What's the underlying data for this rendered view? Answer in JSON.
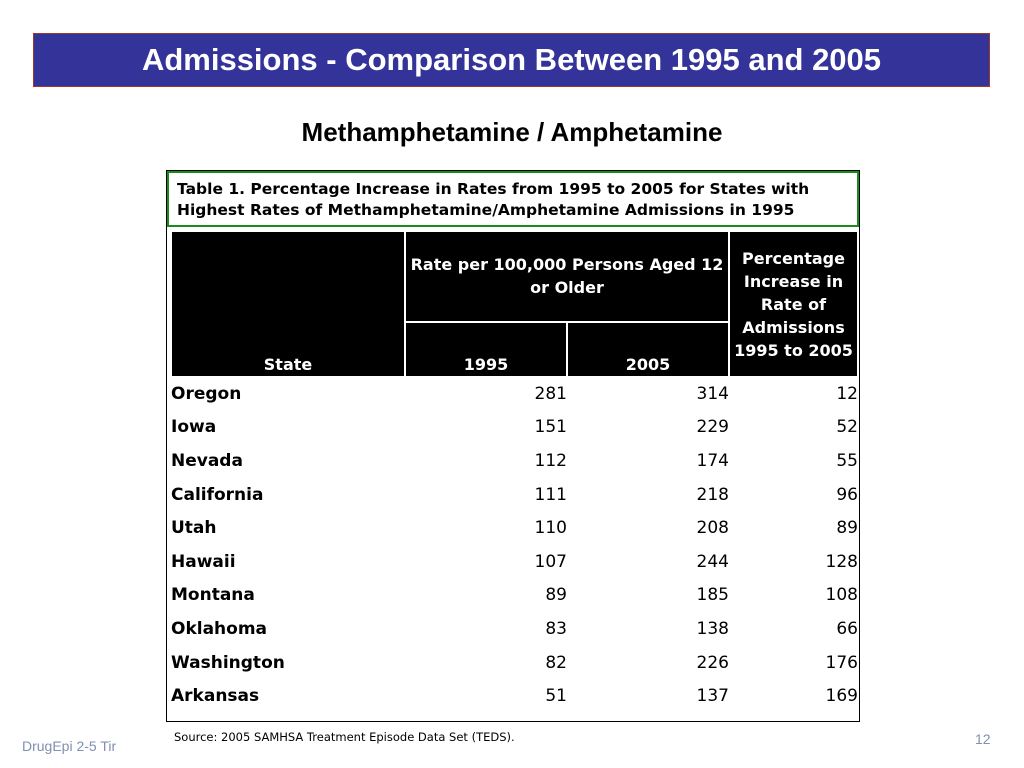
{
  "slide": {
    "title": "Admissions - Comparison Between 1995 and 2005",
    "subtitle": "Methamphetamine / Amphetamine",
    "footer_left": "DrugEpi 2-5  Tir",
    "page_number": "12"
  },
  "table": {
    "caption_line1": "Table 1. Percentage Increase in Rates from 1995 to 2005 for States with",
    "caption_line2": "Highest Rates of Methamphetamine/Amphetamine Admissions in 1995",
    "headers": {
      "state": "State",
      "rate_group": "Rate per 100,000 Persons Aged 12 or Older",
      "year1": "1995",
      "year2": "2005",
      "pct": "Percentage Increase in Rate of Admissions 1995 to 2005"
    },
    "rows": [
      {
        "state": "Oregon",
        "r1995": "281",
        "r2005": "314",
        "pct": "12"
      },
      {
        "state": "Iowa",
        "r1995": "151",
        "r2005": "229",
        "pct": "52"
      },
      {
        "state": "Nevada",
        "r1995": "112",
        "r2005": "174",
        "pct": "55"
      },
      {
        "state": "California",
        "r1995": "111",
        "r2005": "218",
        "pct": "96"
      },
      {
        "state": "Utah",
        "r1995": "110",
        "r2005": "208",
        "pct": "89"
      },
      {
        "state": "Hawaii",
        "r1995": "107",
        "r2005": "244",
        "pct": "128"
      },
      {
        "state": "Montana",
        "r1995": "89",
        "r2005": "185",
        "pct": "108"
      },
      {
        "state": "Oklahoma",
        "r1995": "83",
        "r2005": "138",
        "pct": "66"
      },
      {
        "state": "Washington",
        "r1995": "82",
        "r2005": "226",
        "pct": "176"
      },
      {
        "state": "Arkansas",
        "r1995": "51",
        "r2005": "137",
        "pct": "169"
      }
    ],
    "source": "Source: 2005 SAMHSA Treatment Episode Data Set (TEDS)."
  },
  "colors": {
    "title_bar": "#333399",
    "caption_border": "#1a8a1a",
    "header_bg": "#000000",
    "footer_text": "#8090b0"
  }
}
